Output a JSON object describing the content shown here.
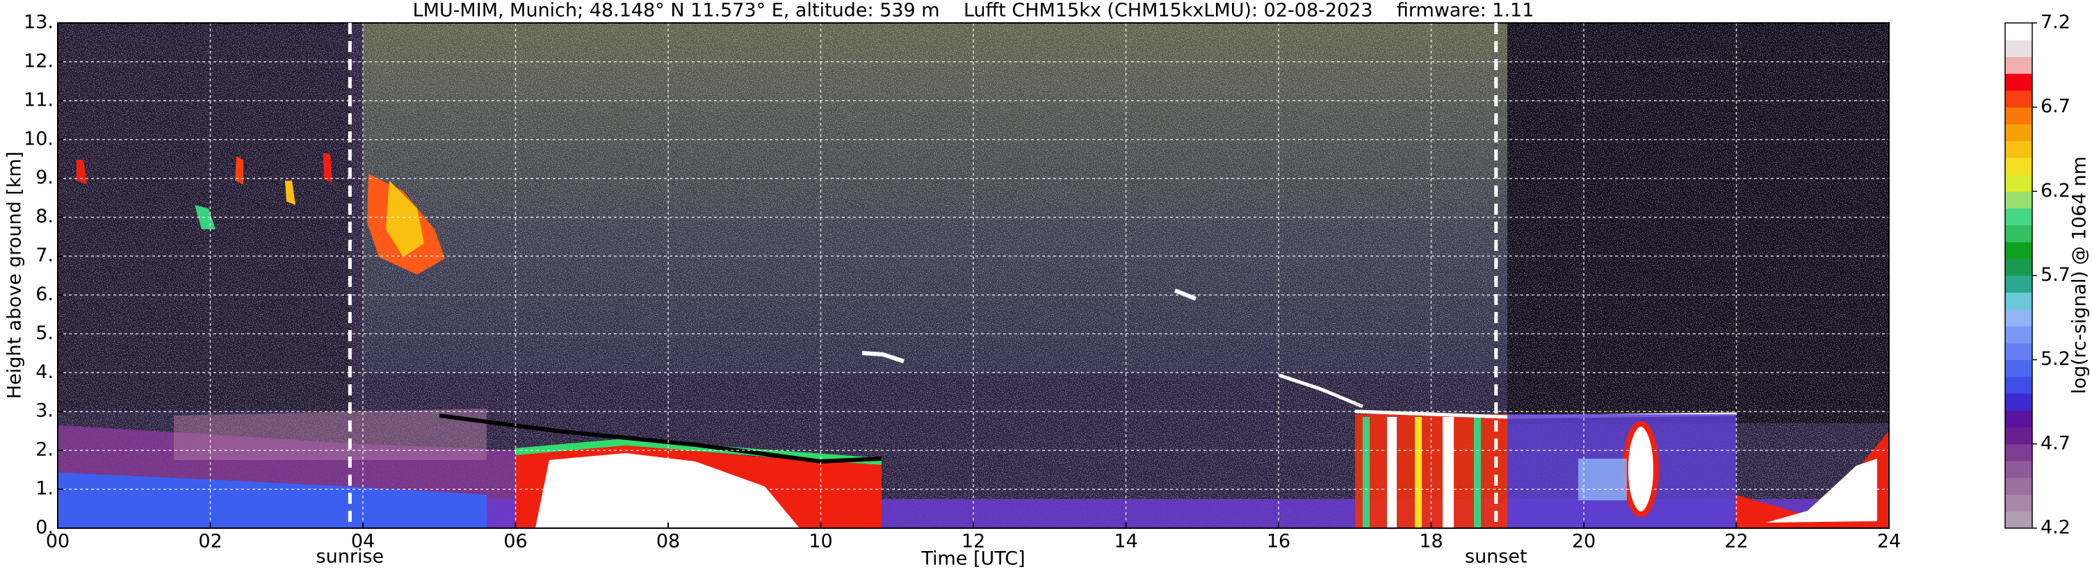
{
  "chart_data": {
    "type": "heatmap",
    "title": "LMU-MIM, Munich; 48.148° N 11.573° E, altitude: 539 m    Lufft CHM15kx (CHM15kxLMU): 02-08-2023    firmware: 1.11",
    "x_label": "Time [UTC]",
    "y_label": "Height above ground [km]",
    "xlim": [
      0,
      24
    ],
    "xticks": [
      {
        "value": 0,
        "label": "00"
      },
      {
        "value": 2,
        "label": "02"
      },
      {
        "value": 4,
        "label": "04"
      },
      {
        "value": 6,
        "label": "06"
      },
      {
        "value": 8,
        "label": "08"
      },
      10,
      12,
      14,
      16,
      18,
      20,
      22,
      24
    ],
    "ylim": [
      0,
      13
    ],
    "yticks": [
      {
        "value": 0,
        "label": "0."
      },
      {
        "value": 1,
        "label": "1."
      },
      {
        "value": 2,
        "label": "2."
      },
      {
        "value": 3,
        "label": "3."
      },
      {
        "value": 4,
        "label": "4."
      },
      {
        "value": 5,
        "label": "5."
      },
      {
        "value": 6,
        "label": "6."
      },
      {
        "value": 7,
        "label": "7."
      },
      {
        "value": 8,
        "label": "8."
      },
      {
        "value": 9,
        "label": "9."
      },
      {
        "value": 10,
        "label": "10."
      },
      {
        "value": 11,
        "label": "11."
      },
      {
        "value": 12,
        "label": "12."
      },
      {
        "value": 13,
        "label": "13."
      }
    ],
    "grid": true,
    "annotations": [
      {
        "text": "sunrise",
        "x": 3.83
      },
      {
        "text": "sunset",
        "x": 18.85
      }
    ],
    "colorbar": {
      "label": "log(rc-signal) @ 1064 nm",
      "lim": [
        4.2,
        7.2
      ],
      "ticks": [
        4.2,
        4.7,
        5.2,
        5.7,
        6.2,
        6.7,
        7.2
      ],
      "colors": [
        "#b29db0",
        "#a888a8",
        "#9c70a0",
        "#8f5a9a",
        "#7d3d94",
        "#6a1f8e",
        "#5a12a0",
        "#3a2ad0",
        "#3f4de8",
        "#4f68f0",
        "#6680f4",
        "#7a98f6",
        "#8fb4f8",
        "#6cc8d8",
        "#2aa890",
        "#1a9a50",
        "#10a020",
        "#33c060",
        "#44d888",
        "#9ae070",
        "#d8ec30",
        "#f4e020",
        "#f8c010",
        "#f8a008",
        "#f87808",
        "#f84010",
        "#f00010",
        "#f0b0b0",
        "#e8e0e0",
        "#ffffff"
      ]
    }
  }
}
